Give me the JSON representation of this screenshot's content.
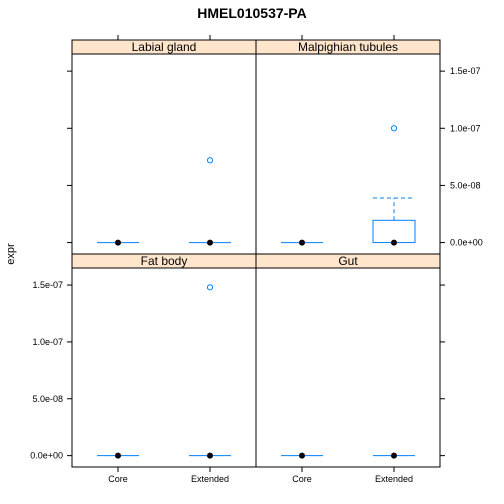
{
  "chart_data": {
    "type": "box",
    "title": "HMEL010537-PA",
    "ylabel": "expr",
    "xlabel": "",
    "categories": [
      "Core",
      "Extended"
    ],
    "ylim": [
      -1e-08,
      1.65e-07
    ],
    "yticks": [
      0,
      5e-08,
      1e-07,
      1.5e-07
    ],
    "ytick_labels": [
      "0.0e+00",
      "5.0e-08",
      "1.0e-07",
      "1.5e-07"
    ],
    "grid": false,
    "colors": {
      "strip": "#ffe5cc",
      "box": "#0080ff",
      "median": "#000000",
      "outlier": "#0080ff",
      "whisker": "#0080ff"
    },
    "panels": [
      {
        "name": "Labial gland",
        "row": 0,
        "col": 0,
        "boxes": [
          {
            "category": "Core",
            "q1": 0,
            "median": 0,
            "q3": 0,
            "whisker_low": 0,
            "whisker_high": 0,
            "outliers": []
          },
          {
            "category": "Extended",
            "q1": 0,
            "median": 0,
            "q3": 0,
            "whisker_low": 0,
            "whisker_high": 0,
            "outliers": [
              7.2e-08
            ]
          }
        ]
      },
      {
        "name": "Malpighian tubules",
        "row": 0,
        "col": 1,
        "boxes": [
          {
            "category": "Core",
            "q1": 0,
            "median": 0,
            "q3": 0,
            "whisker_low": 0,
            "whisker_high": 0,
            "outliers": []
          },
          {
            "category": "Extended",
            "q1": 0,
            "median": 0,
            "q3": 1.95e-08,
            "whisker_low": 0,
            "whisker_high": 3.9e-08,
            "outliers": [
              1e-07
            ]
          }
        ]
      },
      {
        "name": "Fat body",
        "row": 1,
        "col": 0,
        "boxes": [
          {
            "category": "Core",
            "q1": 0,
            "median": 0,
            "q3": 0,
            "whisker_low": 0,
            "whisker_high": 0,
            "outliers": []
          },
          {
            "category": "Extended",
            "q1": 0,
            "median": 0,
            "q3": 0,
            "whisker_low": 0,
            "whisker_high": 0,
            "outliers": [
              1.48e-07
            ]
          }
        ]
      },
      {
        "name": "Gut",
        "row": 1,
        "col": 1,
        "boxes": [
          {
            "category": "Core",
            "q1": 0,
            "median": 0,
            "q3": 0,
            "whisker_low": 0,
            "whisker_high": 0,
            "outliers": []
          },
          {
            "category": "Extended",
            "q1": 0,
            "median": 0,
            "q3": 0,
            "whisker_low": 0,
            "whisker_high": 0,
            "outliers": []
          }
        ]
      }
    ]
  }
}
